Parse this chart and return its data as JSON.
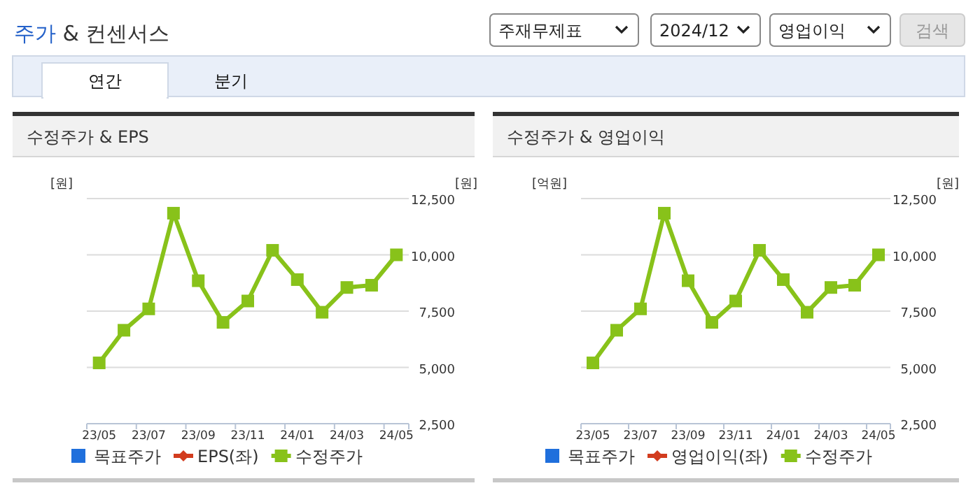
{
  "chart_data": [
    {
      "type": "other",
      "title": "주가 & 컨센서스",
      "annotations": [
        "주재무제표",
        "2024/12",
        "영업이익",
        "검색",
        "연간",
        "분기"
      ]
    },
    {
      "type": "line",
      "title": "수정주가 & EPS",
      "ylabel": "[원]",
      "y2label": "[원]",
      "categories": [
        "23/05",
        null,
        "23/07",
        null,
        "23/09",
        null,
        "23/11",
        null,
        "24/01",
        null,
        "24/03",
        null,
        "24/05"
      ],
      "y2lim": [
        2500,
        12500
      ],
      "y2ticks": [
        {
          "value": 2500,
          "label": "2,500"
        },
        {
          "value": 5000,
          "label": "5,000"
        },
        {
          "value": 7500,
          "label": "7,500"
        },
        {
          "value": 10000,
          "label": "10,000"
        },
        {
          "value": 12500,
          "label": "12,500"
        }
      ],
      "grid": true,
      "legend": "bottom",
      "series": [
        {
          "name": "목표주가",
          "type": "bar",
          "color": "#1f6fdc",
          "values": [
            null,
            null,
            null,
            null,
            null,
            null,
            null,
            null,
            null,
            null,
            null,
            null,
            null
          ]
        },
        {
          "name": "EPS(좌)",
          "type": "line",
          "marker": "diamond",
          "color": "#d23c1e",
          "values": [
            null,
            null,
            null,
            null,
            null,
            null,
            null,
            null,
            null,
            null,
            null,
            null,
            null
          ]
        },
        {
          "name": "수정주가",
          "type": "line",
          "marker": "square",
          "axis": "y2",
          "color": "#88c21a",
          "values": [
            5200,
            6650,
            7600,
            11850,
            8850,
            7000,
            7950,
            10200,
            8900,
            7450,
            8550,
            8650,
            10000
          ]
        }
      ]
    },
    {
      "type": "line",
      "title": "수정주가 & 영업이익",
      "ylabel": "[억원]",
      "y2label": "[원]",
      "categories": [
        "23/05",
        null,
        "23/07",
        null,
        "23/09",
        null,
        "23/11",
        null,
        "24/01",
        null,
        "24/03",
        null,
        "24/05"
      ],
      "y2lim": [
        2500,
        12500
      ],
      "y2ticks": [
        {
          "value": 2500,
          "label": "2,500"
        },
        {
          "value": 5000,
          "label": "5,000"
        },
        {
          "value": 7500,
          "label": "7,500"
        },
        {
          "value": 10000,
          "label": "10,000"
        },
        {
          "value": 12500,
          "label": "12,500"
        }
      ],
      "grid": true,
      "legend": "bottom",
      "series": [
        {
          "name": "목표주가",
          "type": "bar",
          "color": "#1f6fdc",
          "values": [
            null,
            null,
            null,
            null,
            null,
            null,
            null,
            null,
            null,
            null,
            null,
            null,
            null
          ]
        },
        {
          "name": "영업이익(좌)",
          "type": "line",
          "marker": "diamond",
          "color": "#d23c1e",
          "values": [
            null,
            null,
            null,
            null,
            null,
            null,
            null,
            null,
            null,
            null,
            null,
            null,
            null
          ]
        },
        {
          "name": "수정주가",
          "type": "line",
          "marker": "square",
          "axis": "y2",
          "color": "#88c21a",
          "values": [
            5200,
            6650,
            7600,
            11850,
            8850,
            7000,
            7950,
            10200,
            8900,
            7450,
            8550,
            8650,
            10000
          ]
        }
      ]
    }
  ]
}
